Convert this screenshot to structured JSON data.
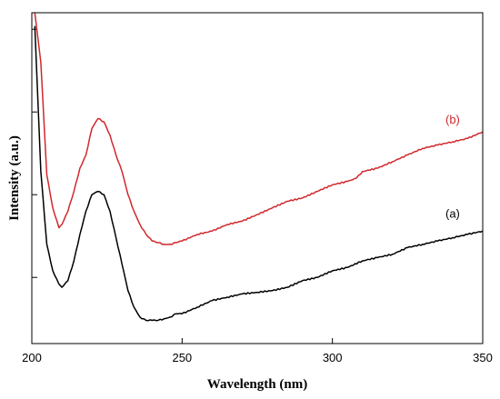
{
  "chart_data": {
    "type": "line",
    "xlabel": "Wavelength (nm)",
    "ylabel": "Intensity (a.u.)",
    "xlim": [
      200,
      350
    ],
    "ylim": [
      0,
      100
    ],
    "x_ticks": [
      200,
      250,
      300,
      350
    ],
    "y_ticks_labeled": false,
    "grid": false,
    "legend": "none",
    "series": [
      {
        "name": "(b)",
        "color": "#d0282c",
        "x": [
          201,
          203,
          205,
          207,
          209,
          210,
          212,
          214,
          216,
          218,
          220,
          222,
          224,
          226,
          228,
          230,
          232,
          234,
          236,
          238,
          240,
          242,
          244,
          246,
          248,
          250,
          255,
          260,
          265,
          270,
          275,
          280,
          285,
          290,
          295,
          300,
          305,
          308,
          310,
          315,
          320,
          325,
          330,
          335,
          340,
          345,
          350
        ],
        "values": [
          100,
          85,
          51,
          41,
          35,
          36,
          40,
          46,
          53,
          57,
          65,
          68,
          67,
          63,
          57,
          52,
          45,
          40,
          36,
          33,
          31,
          30.5,
          30,
          30,
          30.5,
          31,
          33,
          34,
          36,
          37,
          39,
          41,
          43,
          44,
          46,
          48,
          49,
          50,
          52,
          53,
          55,
          57,
          59,
          60,
          61,
          62,
          64
        ]
      },
      {
        "name": "(a)",
        "color": "#000000",
        "x": [
          201,
          203,
          205,
          207,
          209,
          210,
          212,
          214,
          216,
          218,
          220,
          222,
          224,
          226,
          228,
          230,
          232,
          234,
          236,
          238,
          240,
          242,
          244,
          246,
          248,
          250,
          255,
          260,
          265,
          270,
          275,
          280,
          285,
          290,
          295,
          300,
          305,
          310,
          315,
          320,
          325,
          330,
          335,
          340,
          345,
          350
        ],
        "values": [
          96,
          52,
          30,
          22,
          18,
          17,
          19,
          25,
          33,
          40,
          45,
          46,
          45,
          40,
          32,
          24,
          16,
          11,
          8,
          7,
          7,
          7,
          7.5,
          8,
          9,
          9,
          11,
          13,
          14,
          15,
          15.5,
          16,
          17,
          19,
          20,
          22,
          23,
          25,
          26,
          27,
          29,
          30,
          31,
          32,
          33,
          34
        ]
      }
    ]
  }
}
